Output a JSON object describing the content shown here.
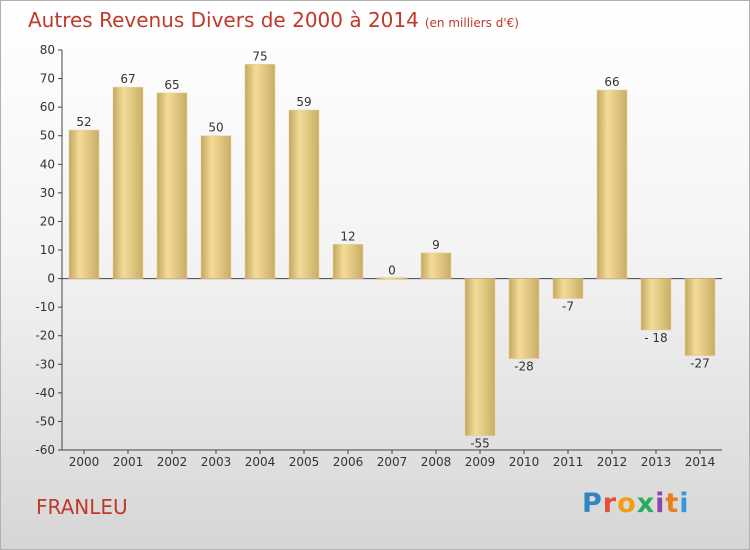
{
  "page": {
    "title": "Autres Revenus Divers de 2000 à 2014",
    "unit": "(en milliers d'€)",
    "location": "FRANLEU",
    "logo_text": "Proxiti",
    "colors": {
      "title": "#c0392b",
      "bar_light": "#f4dc98",
      "bar_dark": "#c3a760",
      "logo": [
        "#2e86c1",
        "#e74c3c",
        "#f39c12",
        "#27ae60",
        "#8e44ad",
        "#e67e22",
        "#3498db"
      ]
    }
  },
  "chart_data": {
    "type": "bar",
    "title": "Autres Revenus Divers de 2000 à 2014",
    "subtitle": "(en milliers d'€)",
    "categories": [
      "2000",
      "2001",
      "2002",
      "2003",
      "2004",
      "2005",
      "2006",
      "2007",
      "2008",
      "2009",
      "2010",
      "2011",
      "2012",
      "2013",
      "2014"
    ],
    "values": [
      52,
      67,
      65,
      50,
      75,
      59,
      12,
      0,
      9,
      -55,
      -28,
      -7,
      66,
      -18,
      -27
    ],
    "data_labels": [
      "52",
      "67",
      "65",
      "50",
      "75",
      "59",
      "12",
      "0",
      "9",
      "-55",
      "-28",
      "-7",
      "66",
      "- 18",
      "-27"
    ],
    "ylim": [
      -60,
      80
    ],
    "yticks": [
      -60,
      -50,
      -40,
      -30,
      -20,
      -10,
      0,
      10,
      20,
      30,
      40,
      50,
      60,
      70,
      80
    ],
    "grid": false,
    "xlabel": "",
    "ylabel": ""
  }
}
